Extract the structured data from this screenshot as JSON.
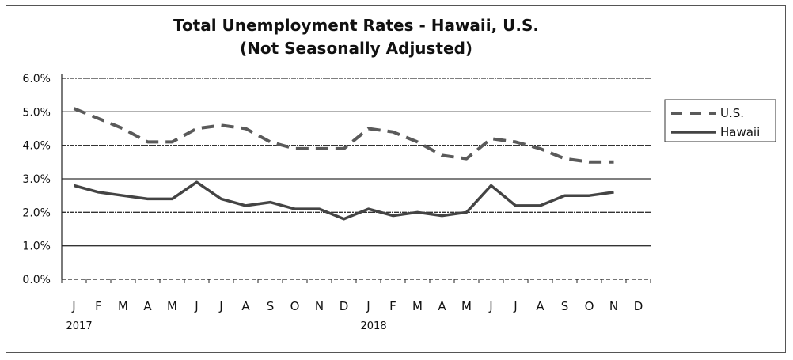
{
  "chart_data": {
    "type": "line",
    "title": "Total Unemployment Rates - Hawaii, U.S.",
    "subtitle": "(Not Seasonally Adjusted)",
    "xlabel": "",
    "ylabel": "",
    "categories": [
      "J",
      "F",
      "M",
      "A",
      "M",
      "J",
      "J",
      "A",
      "S",
      "O",
      "N",
      "D",
      "J",
      "F",
      "M",
      "A",
      "M",
      "J",
      "J",
      "A",
      "S",
      "O",
      "N",
      "D"
    ],
    "year_labels": [
      {
        "label": "2017",
        "index": 0
      },
      {
        "label": "2018",
        "index": 12
      }
    ],
    "yticks": [
      "0.0%",
      "1.0%",
      "2.0%",
      "3.0%",
      "4.0%",
      "5.0%",
      "6.0%"
    ],
    "ylim": [
      0,
      6
    ],
    "grid": true,
    "legend_position": "right",
    "series": [
      {
        "name": "U.S.",
        "style": "dashed",
        "color": "#5a5a5a",
        "values": [
          5.1,
          4.8,
          4.5,
          4.1,
          4.1,
          4.5,
          4.6,
          4.5,
          4.1,
          3.9,
          3.9,
          3.9,
          4.5,
          4.4,
          4.1,
          3.7,
          3.6,
          4.2,
          4.1,
          3.9,
          3.6,
          3.5,
          3.5,
          null
        ]
      },
      {
        "name": "Hawaii",
        "style": "solid",
        "color": "#444444",
        "values": [
          2.8,
          2.6,
          2.5,
          2.4,
          2.4,
          2.9,
          2.4,
          2.2,
          2.3,
          2.1,
          2.1,
          1.8,
          2.1,
          1.9,
          2.0,
          1.9,
          2.0,
          2.8,
          2.2,
          2.2,
          2.5,
          2.5,
          2.6,
          null
        ]
      }
    ]
  }
}
